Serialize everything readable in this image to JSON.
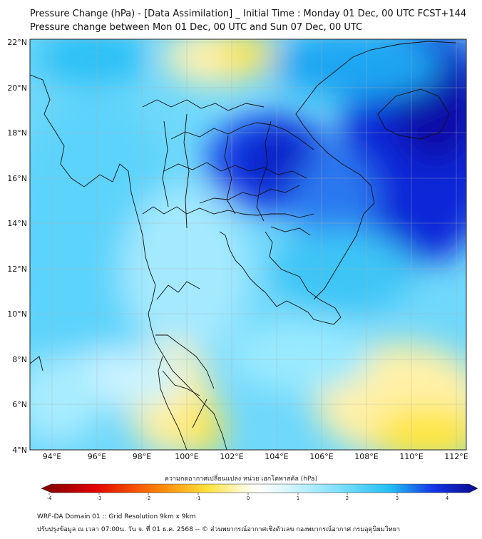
{
  "title": {
    "line1": "Pressure Change (hPa) - [Data Assimilation] _ Initial Time : Monday 01 Dec, 00 UTC FCST+144",
    "line2": "Pressure change between Mon 01 Dec, 00 UTC and Sun 07 Dec, 00 UTC"
  },
  "map": {
    "lat_labels": [
      "22°N",
      "20°N",
      "18°N",
      "16°N",
      "14°N",
      "12°N",
      "10°N",
      "8°N",
      "6°N",
      "4°N"
    ],
    "lon_labels": [
      "94°E",
      "96°E",
      "98°E",
      "100°E",
      "102°E",
      "104°E",
      "106°E",
      "108°E",
      "110°E",
      "112°E"
    ],
    "lat_range": [
      4,
      22
    ],
    "lon_range": [
      93,
      112.5
    ]
  },
  "colorbar": {
    "caption": "ความกดอากาศเปลี่ยนแปลง หน่วย เฮกโตพาสคัล (hPa)",
    "ticks": [
      "-4",
      "-3",
      "-2",
      "-1",
      "0",
      "1",
      "2",
      "3",
      "4"
    ],
    "range": [
      -4,
      4
    ],
    "colors": {
      "neg_extreme": "#7a0000",
      "neg_strong": "#e00000",
      "neg_mid": "#ff7a00",
      "neg_light": "#ffe23c",
      "zero": "#ffffff",
      "pos_light": "#9feaff",
      "pos_mid": "#22bff2",
      "pos_strong": "#1433e6",
      "pos_extreme": "#0a0a8a"
    }
  },
  "footer": {
    "line1": "WRF-DA Domain 01 :: Grid Resolution 9km x 9km",
    "line2": "ปรับปรุงข้อมูล ณ เวลา 07:00น. วัน จ. ที่ 01 ธ.ค. 2568 -- © ส่วนพยากรณ์อากาศเชิงตัวเลข กองพยากรณ์อากาศ กรมอุตุนิยมวิทยา"
  }
}
